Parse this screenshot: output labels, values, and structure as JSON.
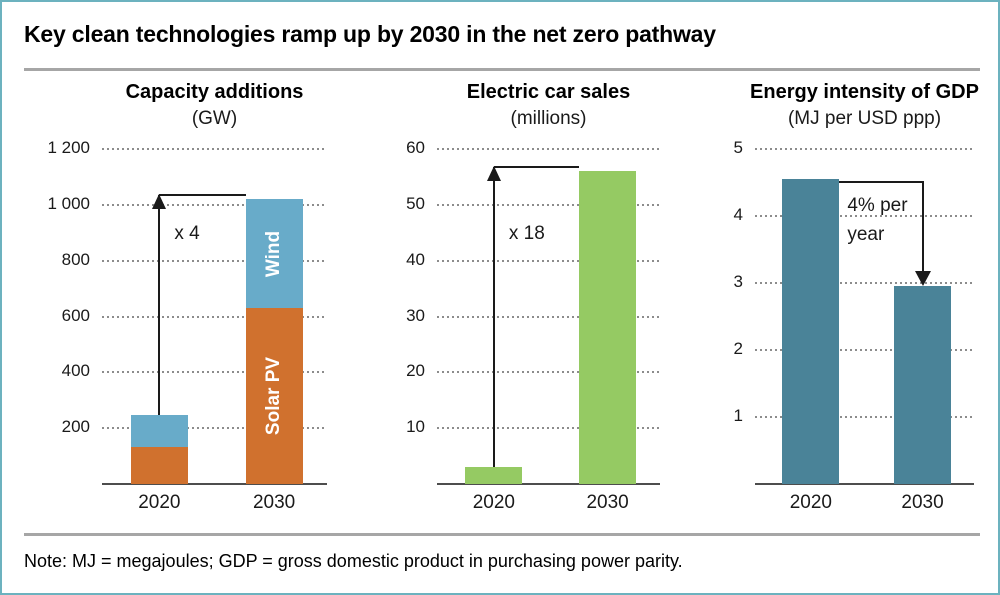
{
  "page": {
    "title": "Key clean technologies ramp up by 2030 in the net zero pathway",
    "note": "Note: MJ = megajoules; GDP = gross domestic product in purchasing power parity."
  },
  "colors": {
    "border": "#6cb2bf",
    "separator": "#a6a6a6",
    "grid": "#8c8c8c",
    "axis": "#4d4d4d",
    "arrow": "#1a1a1a",
    "bar_label_text": "#ffffff",
    "solar_pv": "#d0712e",
    "wind": "#68abc9",
    "electric_cars": "#95ca63",
    "energy_intensity": "#4a8398"
  },
  "chart_data": [
    {
      "type": "bar",
      "stacked": true,
      "title": "Capacity additions",
      "subtitle": "(GW)",
      "categories": [
        "2020",
        "2030"
      ],
      "series": [
        {
          "name": "Solar PV",
          "color": "#d0712e",
          "values": [
            134,
            630
          ]
        },
        {
          "name": "Wind",
          "color": "#68abc9",
          "values": [
            114,
            390
          ]
        }
      ],
      "totals": [
        248,
        1020
      ],
      "segment_labels_on_category": 1,
      "ylim": [
        0,
        1200
      ],
      "yticks": [
        {
          "value": 200,
          "label": "200"
        },
        {
          "value": 400,
          "label": "400"
        },
        {
          "value": 600,
          "label": "600"
        },
        {
          "value": 800,
          "label": "800"
        },
        {
          "value": 1000,
          "label": "1 000"
        },
        {
          "value": 1200,
          "label": "1 200"
        }
      ],
      "grid": "dotted",
      "legend_position": "in-bar",
      "annotation": {
        "kind": "multiply",
        "text": "x 4"
      }
    },
    {
      "type": "bar",
      "stacked": false,
      "title": "Electric car sales",
      "subtitle": "(millions)",
      "categories": [
        "2020",
        "2030"
      ],
      "series": [
        {
          "name": "Electric car sales",
          "color": "#95ca63",
          "values": [
            3,
            56
          ]
        }
      ],
      "totals": [
        3,
        56
      ],
      "ylim": [
        0,
        60
      ],
      "yticks": [
        {
          "value": 10,
          "label": "10"
        },
        {
          "value": 20,
          "label": "20"
        },
        {
          "value": 30,
          "label": "30"
        },
        {
          "value": 40,
          "label": "40"
        },
        {
          "value": 50,
          "label": "50"
        },
        {
          "value": 60,
          "label": "60"
        }
      ],
      "grid": "dotted",
      "legend_position": "none",
      "annotation": {
        "kind": "multiply",
        "text": "x 18"
      }
    },
    {
      "type": "bar",
      "stacked": false,
      "title": "Energy intensity of GDP",
      "subtitle": "(MJ per USD ppp)",
      "categories": [
        "2020",
        "2030"
      ],
      "series": [
        {
          "name": "Energy intensity of GDP",
          "color": "#4a8398",
          "values": [
            4.55,
            2.95
          ]
        }
      ],
      "totals": [
        4.55,
        2.95
      ],
      "ylim": [
        0,
        5
      ],
      "yticks": [
        {
          "value": 1,
          "label": "1"
        },
        {
          "value": 2,
          "label": "2"
        },
        {
          "value": 3,
          "label": "3"
        },
        {
          "value": 4,
          "label": "4"
        },
        {
          "value": 5,
          "label": "5"
        }
      ],
      "grid": "dotted",
      "legend_position": "none",
      "annotation": {
        "kind": "rate",
        "text": "4% per year"
      }
    }
  ]
}
